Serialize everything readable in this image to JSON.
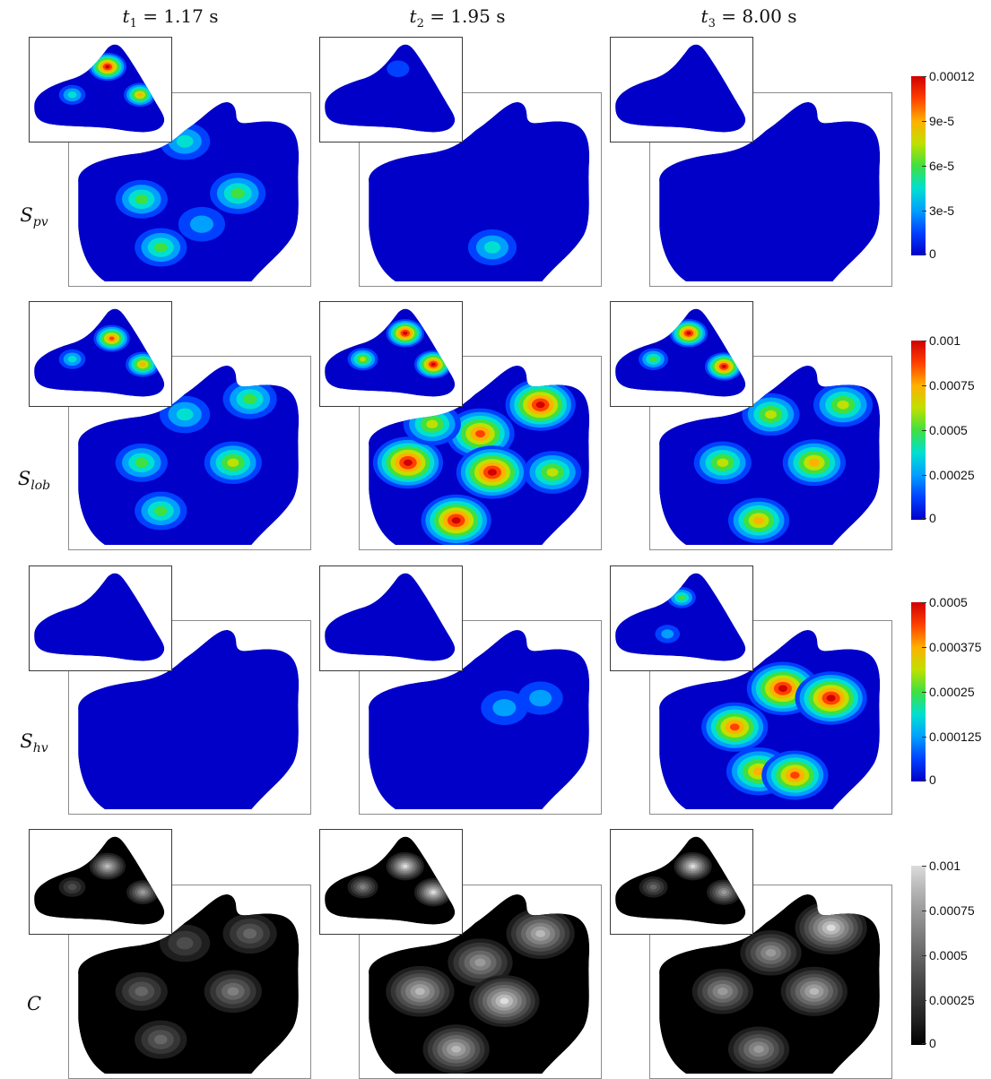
{
  "columns": [
    {
      "var": "t",
      "sub": "1",
      "value": "= 1.17 s"
    },
    {
      "var": "t",
      "sub": "2",
      "value": "= 1.95 s"
    },
    {
      "var": "t",
      "sub": "3",
      "value": "= 8.00 s"
    }
  ],
  "rows": [
    {
      "symbol": "S",
      "sub": "pv",
      "colormap": "rainbow",
      "colors": [
        "#0000c8",
        "#0040ff",
        "#00a0ff",
        "#00e0d0",
        "#40e040",
        "#c0e000",
        "#ffb000",
        "#ff4000",
        "#d00000"
      ],
      "ticks": [
        "0.00012",
        "9e-5",
        "6e-5",
        "3e-5",
        "0"
      ],
      "intensity": [
        {
          "main": [
            [
              0.3,
              0.55,
              0.45
            ],
            [
              0.48,
              0.25,
              0.4
            ],
            [
              0.7,
              0.52,
              0.55
            ],
            [
              0.38,
              0.8,
              0.45
            ],
            [
              0.55,
              0.68,
              0.3
            ]
          ],
          "inset": [
            [
              0.55,
              0.28,
              1.0
            ],
            [
              0.78,
              0.55,
              0.7
            ],
            [
              0.3,
              0.55,
              0.4
            ]
          ]
        },
        {
          "main": [
            [
              0.55,
              0.8,
              0.35
            ]
          ],
          "inset": [
            [
              0.55,
              0.3,
              0.18
            ]
          ]
        },
        {
          "main": [],
          "inset": []
        }
      ]
    },
    {
      "symbol": "S",
      "sub": "lob",
      "colormap": "rainbow",
      "colors": [
        "#0000c8",
        "#0040ff",
        "#00a0ff",
        "#00e0d0",
        "#40e040",
        "#c0e000",
        "#ffb000",
        "#ff4000",
        "#d00000"
      ],
      "ticks": [
        "0.001",
        "0.00075",
        "0.0005",
        "0.00025",
        "0"
      ],
      "intensity": [
        {
          "main": [
            [
              0.3,
              0.55,
              0.45
            ],
            [
              0.48,
              0.3,
              0.4
            ],
            [
              0.68,
              0.55,
              0.6
            ],
            [
              0.38,
              0.8,
              0.45
            ],
            [
              0.75,
              0.22,
              0.5
            ]
          ],
          "inset": [
            [
              0.58,
              0.35,
              0.9
            ],
            [
              0.8,
              0.6,
              0.8
            ],
            [
              0.3,
              0.55,
              0.4
            ]
          ]
        },
        {
          "main": [
            [
              0.2,
              0.55,
              0.95
            ],
            [
              0.5,
              0.4,
              0.9
            ],
            [
              0.55,
              0.6,
              1.0
            ],
            [
              0.75,
              0.25,
              0.95
            ],
            [
              0.4,
              0.85,
              0.95
            ],
            [
              0.8,
              0.6,
              0.6
            ],
            [
              0.3,
              0.35,
              0.6
            ]
          ],
          "inset": [
            [
              0.6,
              0.3,
              1.0
            ],
            [
              0.8,
              0.6,
              1.0
            ],
            [
              0.3,
              0.55,
              0.6
            ]
          ]
        },
        {
          "main": [
            [
              0.3,
              0.55,
              0.6
            ],
            [
              0.5,
              0.3,
              0.6
            ],
            [
              0.68,
              0.55,
              0.75
            ],
            [
              0.45,
              0.85,
              0.7
            ],
            [
              0.8,
              0.25,
              0.65
            ]
          ],
          "inset": [
            [
              0.55,
              0.3,
              1.0
            ],
            [
              0.8,
              0.62,
              1.0
            ],
            [
              0.3,
              0.55,
              0.55
            ]
          ]
        }
      ]
    },
    {
      "symbol": "S",
      "sub": "hv",
      "colormap": "rainbow",
      "colors": [
        "#0000c8",
        "#0040ff",
        "#00a0ff",
        "#00e0d0",
        "#40e040",
        "#c0e000",
        "#ffb000",
        "#ff4000",
        "#d00000"
      ],
      "ticks": [
        "0.0005",
        "0.000375",
        "0.00025",
        "0.000125",
        "0"
      ],
      "intensity": [
        {
          "main": [],
          "inset": []
        },
        {
          "main": [
            [
              0.6,
              0.45,
              0.3
            ],
            [
              0.75,
              0.4,
              0.25
            ]
          ],
          "inset": []
        },
        {
          "main": [
            [
              0.55,
              0.35,
              1.0
            ],
            [
              0.75,
              0.4,
              1.0
            ],
            [
              0.35,
              0.55,
              0.85
            ],
            [
              0.45,
              0.78,
              0.8
            ],
            [
              0.6,
              0.8,
              0.85
            ]
          ],
          "inset": [
            [
              0.5,
              0.3,
              0.5
            ],
            [
              0.4,
              0.65,
              0.3
            ]
          ]
        }
      ]
    },
    {
      "symbol": "C",
      "sub": "",
      "colormap": "gray",
      "colors": [
        "#000000",
        "#1e1e1e",
        "#353535",
        "#4c4c4c",
        "#666666",
        "#808080",
        "#9a9a9a",
        "#b8b8b8",
        "#dcdcdc"
      ],
      "ticks": [
        "0.001",
        "0.00075",
        "0.0005",
        "0.00025",
        "0"
      ],
      "intensity": [
        {
          "main": [
            [
              0.3,
              0.55,
              0.45
            ],
            [
              0.48,
              0.3,
              0.4
            ],
            [
              0.68,
              0.55,
              0.6
            ],
            [
              0.38,
              0.8,
              0.45
            ],
            [
              0.75,
              0.25,
              0.5
            ]
          ],
          "inset": [
            [
              0.55,
              0.35,
              0.9
            ],
            [
              0.8,
              0.6,
              0.7
            ],
            [
              0.3,
              0.55,
              0.4
            ]
          ]
        },
        {
          "main": [
            [
              0.25,
              0.55,
              0.9
            ],
            [
              0.5,
              0.4,
              0.8
            ],
            [
              0.6,
              0.6,
              0.95
            ],
            [
              0.75,
              0.25,
              0.9
            ],
            [
              0.4,
              0.85,
              0.85
            ]
          ],
          "inset": [
            [
              0.6,
              0.35,
              1.0
            ],
            [
              0.8,
              0.6,
              1.0
            ],
            [
              0.3,
              0.55,
              0.6
            ]
          ]
        },
        {
          "main": [
            [
              0.3,
              0.55,
              0.7
            ],
            [
              0.5,
              0.35,
              0.7
            ],
            [
              0.68,
              0.55,
              0.85
            ],
            [
              0.45,
              0.85,
              0.7
            ],
            [
              0.75,
              0.22,
              1.0
            ]
          ],
          "inset": [
            [
              0.58,
              0.35,
              1.0
            ],
            [
              0.8,
              0.6,
              0.8
            ],
            [
              0.3,
              0.55,
              0.5
            ]
          ]
        }
      ]
    }
  ]
}
